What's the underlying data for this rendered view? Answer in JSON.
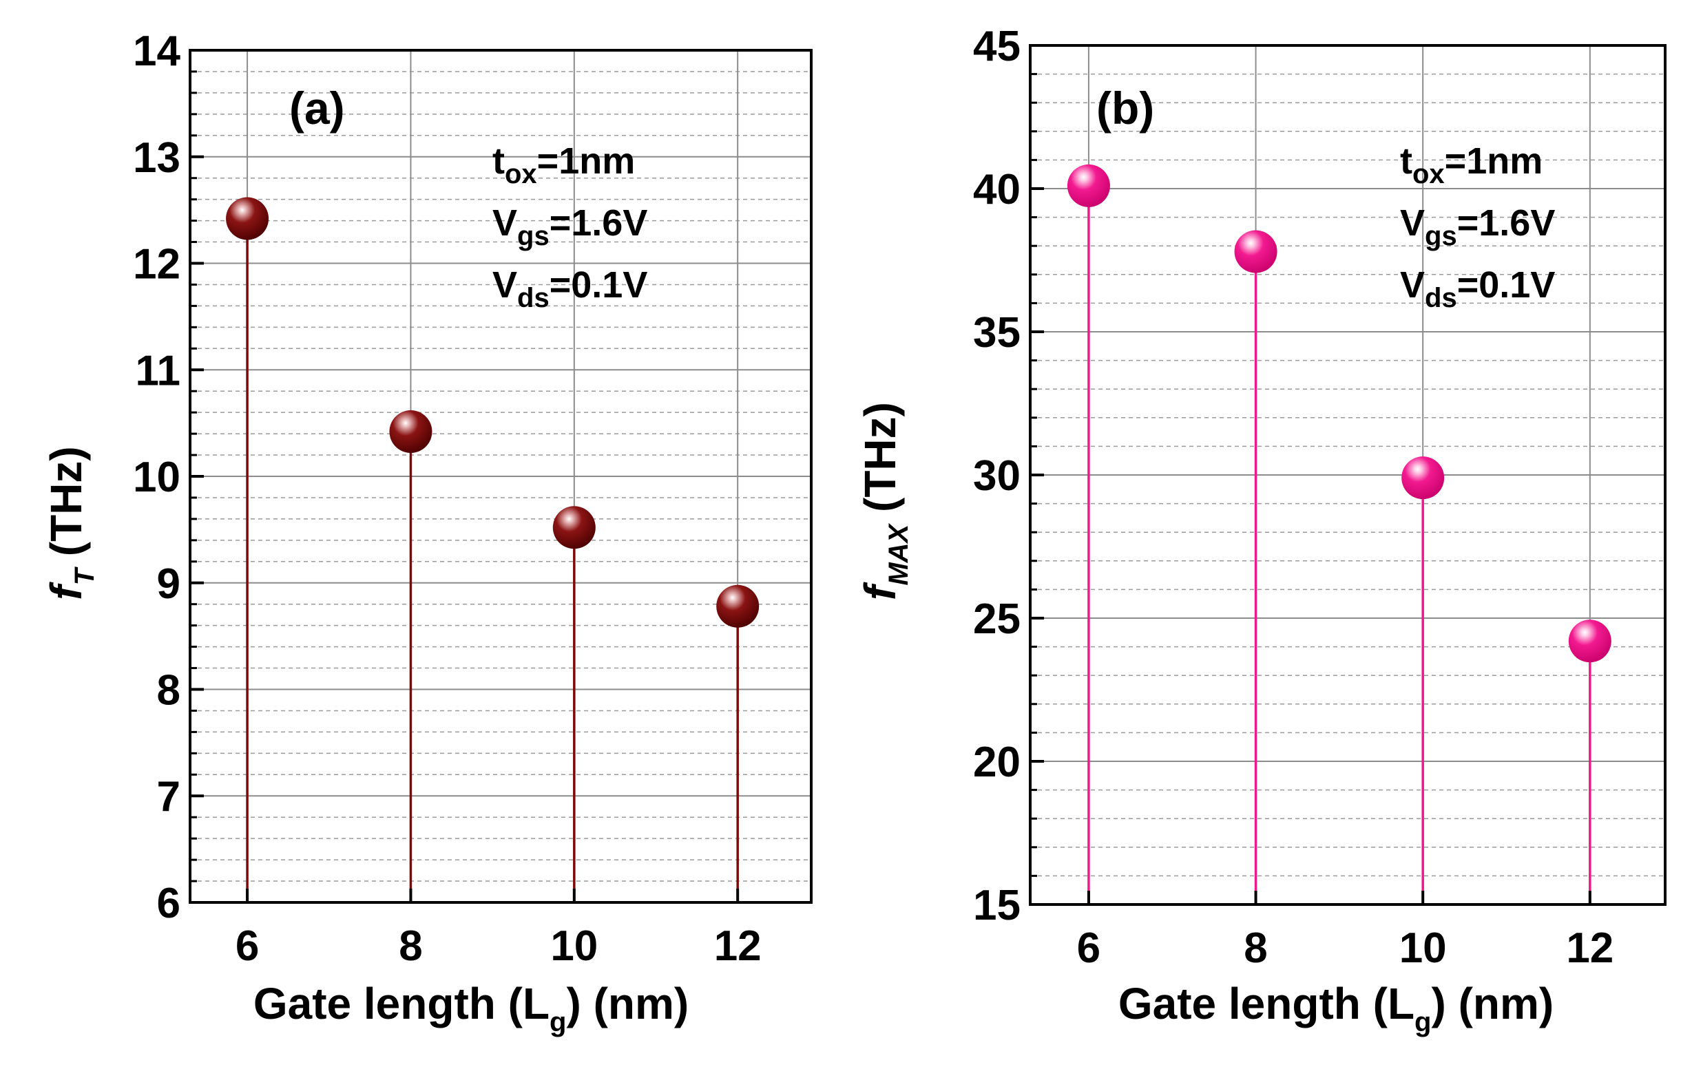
{
  "chart_data": [
    {
      "type": "stem",
      "panel_label": "(a)",
      "xlabel": "Gate length (L",
      "xlabel_sub": "g",
      "xlabel_tail": ") (nm)",
      "ylabel_symbol": "f",
      "ylabel_sub": "T",
      "ylabel_tail": " (THz)",
      "x": [
        6,
        8,
        10,
        12
      ],
      "x_tick_labels": [
        "6",
        "8",
        "10",
        "12"
      ],
      "values": [
        12.42,
        10.42,
        9.52,
        8.78
      ],
      "xlim": [
        5.3,
        12.9
      ],
      "ylim": [
        6,
        14
      ],
      "y_tick_labels": [
        "6",
        "7",
        "8",
        "9",
        "10",
        "11",
        "12",
        "13",
        "14"
      ],
      "y_minor_step": 0.2,
      "color": "#7b0a0a",
      "annotations": {
        "line1_main": "t",
        "line1_sub": "ox",
        "line1_tail": "=1nm",
        "line2_main": "V",
        "line2_sub": "gs",
        "line2_tail": "=1.6V",
        "line3_main": "V",
        "line3_sub": "ds",
        "line3_tail": "=0.1V"
      },
      "grid": true
    },
    {
      "type": "stem",
      "panel_label": "(b)",
      "xlabel": "Gate length (L",
      "xlabel_sub": "g",
      "xlabel_tail": ") (nm)",
      "ylabel_symbol": "f",
      "ylabel_sub": "MAX",
      "ylabel_tail": " (THz)",
      "x": [
        6,
        8,
        10,
        12
      ],
      "x_tick_labels": [
        "6",
        "8",
        "10",
        "12"
      ],
      "values": [
        40.1,
        37.8,
        29.9,
        24.2
      ],
      "xlim": [
        5.3,
        12.9
      ],
      "ylim": [
        15,
        45
      ],
      "y_tick_labels": [
        "15",
        "20",
        "25",
        "30",
        "35",
        "40",
        "45"
      ],
      "y_minor_step": 1,
      "color": "#ee1a8c",
      "annotations": {
        "line1_main": "t",
        "line1_sub": "ox",
        "line1_tail": "=1nm",
        "line2_main": "V",
        "line2_sub": "gs",
        "line2_tail": "=1.6V",
        "line3_main": "V",
        "line3_sub": "ds",
        "line3_tail": "=0.1V"
      },
      "grid": true
    }
  ]
}
